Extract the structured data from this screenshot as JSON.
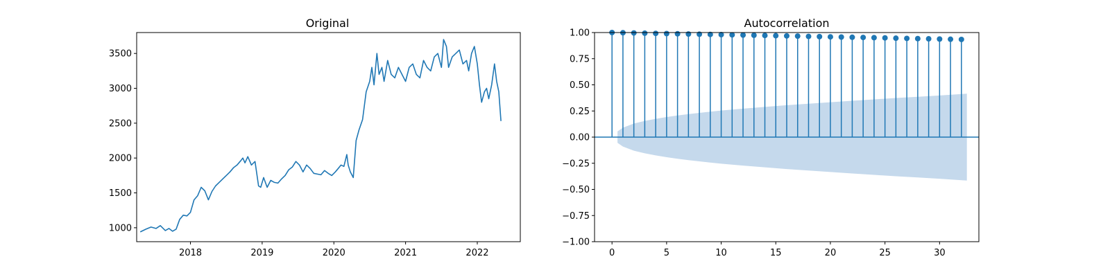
{
  "chart_data": [
    {
      "type": "line",
      "title": "Original",
      "xlabel": "",
      "ylabel": "",
      "xlim": [
        2017.25,
        2022.6
      ],
      "ylim": [
        800,
        3800
      ],
      "x_ticks": [
        {
          "value": 2018,
          "label": "2018"
        },
        {
          "value": 2019,
          "label": "2019"
        },
        {
          "value": 2020,
          "label": "2020"
        },
        {
          "value": 2021,
          "label": "2021"
        },
        {
          "value": 2022,
          "label": "2022"
        }
      ],
      "y_ticks": [
        {
          "value": 1000,
          "label": "1000"
        },
        {
          "value": 1500,
          "label": "1500"
        },
        {
          "value": 2000,
          "label": "2000"
        },
        {
          "value": 2500,
          "label": "2500"
        },
        {
          "value": 3000,
          "label": "3000"
        },
        {
          "value": 3500,
          "label": "3500"
        }
      ],
      "grid": false,
      "color": "#1f77b4",
      "series": [
        {
          "x": [
            2017.3,
            2017.38,
            2017.45,
            2017.52,
            2017.58,
            2017.65,
            2017.7,
            2017.75,
            2017.8,
            2017.85,
            2017.9,
            2017.95,
            2018.0,
            2018.05,
            2018.1,
            2018.15,
            2018.2,
            2018.25,
            2018.3,
            2018.35,
            2018.4,
            2018.45,
            2018.5,
            2018.55,
            2018.6,
            2018.65,
            2018.7,
            2018.73,
            2018.76,
            2018.8,
            2018.85,
            2018.9,
            2018.95,
            2018.98,
            2019.02,
            2019.07,
            2019.12,
            2019.17,
            2019.22,
            2019.27,
            2019.32,
            2019.37,
            2019.42,
            2019.47,
            2019.52,
            2019.57,
            2019.62,
            2019.67,
            2019.72,
            2019.77,
            2019.82,
            2019.87,
            2019.92,
            2019.97,
            2020.02,
            2020.06,
            2020.1,
            2020.14,
            2020.18,
            2020.2,
            2020.23,
            2020.27,
            2020.31,
            2020.35,
            2020.4,
            2020.45,
            2020.5,
            2020.53,
            2020.56,
            2020.6,
            2020.63,
            2020.67,
            2020.7,
            2020.75,
            2020.8,
            2020.85,
            2020.9,
            2020.95,
            2021.0,
            2021.05,
            2021.1,
            2021.15,
            2021.2,
            2021.25,
            2021.3,
            2021.35,
            2021.4,
            2021.45,
            2021.5,
            2021.53,
            2021.57,
            2021.6,
            2021.65,
            2021.7,
            2021.75,
            2021.8,
            2021.85,
            2021.88,
            2021.92,
            2021.96,
            2022.0,
            2022.03,
            2022.06,
            2022.1,
            2022.13,
            2022.16,
            2022.2,
            2022.24,
            2022.27,
            2022.3,
            2022.33
          ],
          "y": [
            940,
            980,
            1010,
            990,
            1030,
            960,
            990,
            950,
            980,
            1120,
            1180,
            1170,
            1220,
            1400,
            1460,
            1580,
            1530,
            1400,
            1520,
            1600,
            1650,
            1700,
            1750,
            1800,
            1860,
            1900,
            1960,
            2000,
            1930,
            2020,
            1900,
            1950,
            1600,
            1580,
            1720,
            1580,
            1680,
            1650,
            1640,
            1700,
            1750,
            1830,
            1870,
            1950,
            1900,
            1800,
            1900,
            1850,
            1780,
            1770,
            1760,
            1820,
            1780,
            1750,
            1800,
            1850,
            1900,
            1880,
            2050,
            1900,
            1800,
            1720,
            2250,
            2400,
            2550,
            2950,
            3100,
            3300,
            3050,
            3500,
            3200,
            3300,
            3100,
            3400,
            3200,
            3150,
            3300,
            3200,
            3100,
            3300,
            3350,
            3200,
            3150,
            3400,
            3300,
            3250,
            3450,
            3500,
            3300,
            3700,
            3600,
            3300,
            3450,
            3500,
            3550,
            3350,
            3400,
            3250,
            3500,
            3600,
            3350,
            3050,
            2800,
            2950,
            3000,
            2850,
            3050,
            3350,
            3100,
            2950,
            2530
          ]
        }
      ]
    },
    {
      "type": "stem",
      "title": "Autocorrelation",
      "xlabel": "",
      "ylabel": "",
      "xlim": [
        -1.6,
        33.6
      ],
      "ylim": [
        -1.0,
        1.0
      ],
      "x_ticks": [
        {
          "value": 0,
          "label": "0"
        },
        {
          "value": 5,
          "label": "5"
        },
        {
          "value": 10,
          "label": "10"
        },
        {
          "value": 15,
          "label": "15"
        },
        {
          "value": 20,
          "label": "20"
        },
        {
          "value": 25,
          "label": "25"
        },
        {
          "value": 30,
          "label": "30"
        }
      ],
      "y_ticks": [
        {
          "value": -1.0,
          "label": "−1.00"
        },
        {
          "value": -0.75,
          "label": "−0.75"
        },
        {
          "value": -0.5,
          "label": "−0.50"
        },
        {
          "value": -0.25,
          "label": "−0.25"
        },
        {
          "value": 0.0,
          "label": "0.00"
        },
        {
          "value": 0.25,
          "label": "0.25"
        },
        {
          "value": 0.5,
          "label": "0.50"
        },
        {
          "value": 0.75,
          "label": "0.75"
        },
        {
          "value": 1.0,
          "label": "1.00"
        }
      ],
      "grid": false,
      "color": "#1f77b4",
      "confidence_fill_color": "#c5d9ec",
      "lags": [
        0,
        1,
        2,
        3,
        4,
        5,
        6,
        7,
        8,
        9,
        10,
        11,
        12,
        13,
        14,
        15,
        16,
        17,
        18,
        19,
        20,
        21,
        22,
        23,
        24,
        25,
        26,
        27,
        28,
        29,
        30,
        31,
        32
      ],
      "values": [
        1.0,
        0.998,
        0.996,
        0.994,
        0.992,
        0.99,
        0.988,
        0.986,
        0.984,
        0.982,
        0.98,
        0.978,
        0.976,
        0.974,
        0.972,
        0.97,
        0.968,
        0.966,
        0.963,
        0.961,
        0.959,
        0.957,
        0.955,
        0.953,
        0.951,
        0.949,
        0.946,
        0.944,
        0.942,
        0.94,
        0.938,
        0.936,
        0.934
      ],
      "confidence_band": {
        "x": [
          0.5,
          1,
          2,
          3,
          4,
          5,
          6,
          7,
          8,
          9,
          10,
          12,
          14,
          16,
          18,
          20,
          22,
          24,
          26,
          28,
          30,
          32.5
        ],
        "upper": [
          0.055,
          0.09,
          0.13,
          0.155,
          0.175,
          0.192,
          0.207,
          0.22,
          0.232,
          0.243,
          0.254,
          0.272,
          0.289,
          0.305,
          0.32,
          0.334,
          0.348,
          0.361,
          0.374,
          0.386,
          0.398,
          0.415
        ]
      }
    }
  ]
}
